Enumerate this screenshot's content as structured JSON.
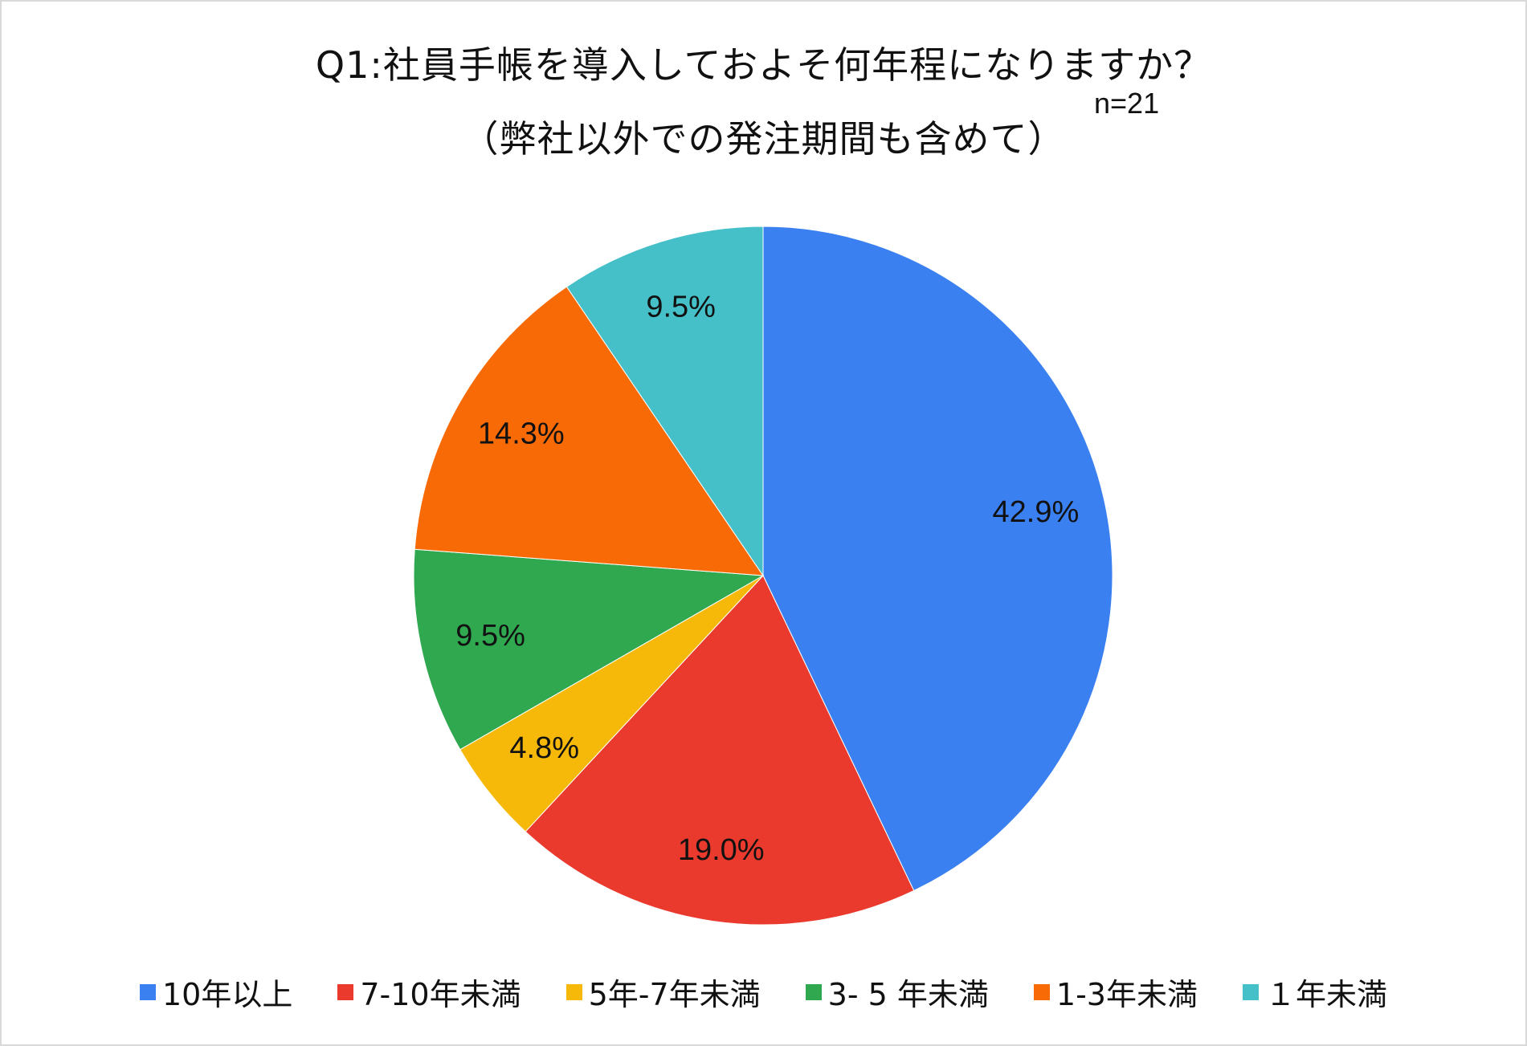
{
  "chart_data": {
    "type": "pie",
    "title": "Q1:社員手帳を導入しておよそ何年程になりますか？",
    "subtitle": "（弊社以外での発注期間も含めて）",
    "sample_size_label": "n=21",
    "legend_position": "bottom",
    "slices": [
      {
        "name": "10年以上",
        "value": 42.9,
        "label": "42.9%",
        "color": "#3A80F0"
      },
      {
        "name": "7-10年未満",
        "value": 19.0,
        "label": "19.0%",
        "color": "#EA3A2E"
      },
      {
        "name": "5年-7年未満",
        "value": 4.8,
        "label": "4.8%",
        "color": "#F6B90A"
      },
      {
        "name": "3- 5 年未満",
        "value": 9.5,
        "label": "9.5%",
        "color": "#2FA84F"
      },
      {
        "name": "1-3年未満",
        "value": 14.3,
        "label": "14.3%",
        "color": "#F76A05"
      },
      {
        "name": "１年未満",
        "value": 9.5,
        "label": "9.5%",
        "color": "#45C0C8"
      }
    ]
  }
}
